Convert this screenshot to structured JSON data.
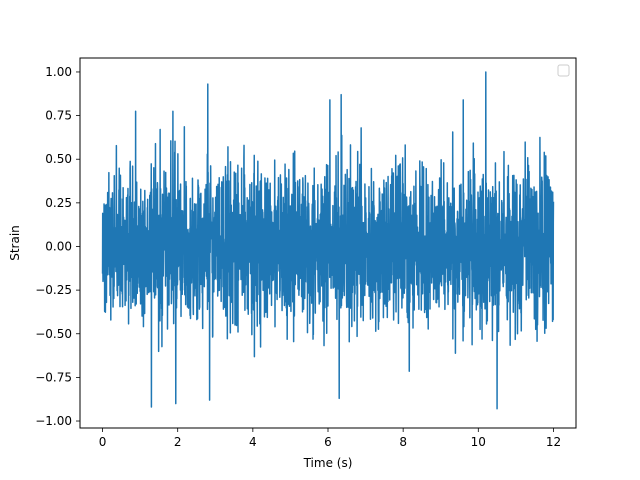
{
  "chart_data": {
    "type": "line",
    "title": "",
    "xlabel": "Time (s)",
    "ylabel": "Strain",
    "xlim": [
      -0.6,
      12.6
    ],
    "ylim": [
      -1.04,
      1.08
    ],
    "x_ticks": [
      0,
      2,
      4,
      6,
      8,
      10,
      12
    ],
    "x_tick_labels": [
      "0",
      "2",
      "4",
      "6",
      "8",
      "10",
      "12"
    ],
    "y_ticks": [
      -1.0,
      -0.75,
      -0.5,
      -0.25,
      0.0,
      0.25,
      0.5,
      0.75,
      1.0
    ],
    "y_tick_labels": [
      "−1.00",
      "−0.75",
      "−0.50",
      "−0.25",
      "0.00",
      "0.25",
      "0.50",
      "0.75",
      "1.00"
    ],
    "grid": false,
    "legend": {
      "location": "upper right",
      "entries": []
    },
    "series": [
      {
        "color": "#1f77b4",
        "x_range": [
          0,
          12
        ],
        "envelope_typical": [
          -0.5,
          0.5
        ],
        "peaks": [
          {
            "x": 10.2,
            "y": 1.0
          },
          {
            "x": 2.8,
            "y": 0.93
          },
          {
            "x": 6.35,
            "y": 0.87
          },
          {
            "x": 6.05,
            "y": 0.84
          },
          {
            "x": 9.6,
            "y": 0.84
          },
          {
            "x": 1.3,
            "y": -0.92
          },
          {
            "x": 1.95,
            "y": -0.9
          },
          {
            "x": 2.85,
            "y": -0.88
          },
          {
            "x": 6.3,
            "y": -0.87
          },
          {
            "x": 10.5,
            "y": -0.93
          }
        ]
      }
    ]
  }
}
